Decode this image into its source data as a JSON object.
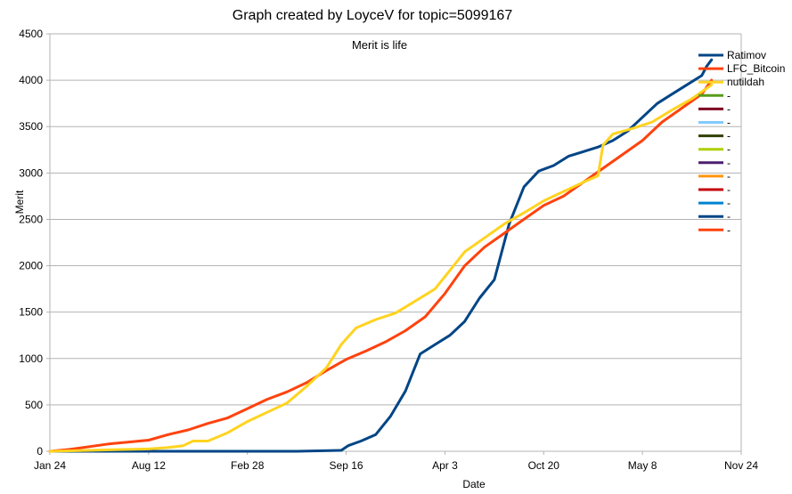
{
  "chart_data": {
    "type": "line",
    "title": "Graph created by LoyceV for topic=5099167",
    "subtitle": "Merit is life",
    "xlabel": "Date",
    "ylabel": "Merit",
    "ylim": [
      0,
      4500
    ],
    "yticks": [
      0,
      500,
      1000,
      1500,
      2000,
      2500,
      3000,
      3500,
      4000,
      4500
    ],
    "x_tick_labels": [
      "Jan 24",
      "Aug 12",
      "Feb 28",
      "Sep 16",
      "Apr 3",
      "Oct 20",
      "May 8",
      "Nov 24"
    ],
    "grid": "horizontal",
    "legend_position": "right",
    "series": [
      {
        "name": "Ratimov",
        "color": "#004586",
        "x": [
          0,
          0.5,
          1,
          1.5,
          2,
          2.5,
          2.95,
          3.02,
          3.15,
          3.3,
          3.45,
          3.6,
          3.75,
          3.9,
          4.05,
          4.2,
          4.35,
          4.5,
          4.65,
          4.8,
          4.95,
          5.1,
          5.25,
          5.4,
          5.55,
          5.7,
          5.85,
          6.0,
          6.15,
          6.3,
          6.45,
          6.6,
          6.65,
          6.7
        ],
        "y": [
          0,
          0,
          0,
          0,
          0,
          0,
          10,
          60,
          110,
          180,
          380,
          650,
          1050,
          1150,
          1250,
          1400,
          1650,
          1850,
          2450,
          2850,
          3020,
          3080,
          3180,
          3230,
          3280,
          3350,
          3450,
          3600,
          3750,
          3850,
          3950,
          4050,
          4150,
          4220
        ]
      },
      {
        "name": "LFC_Bitcoin",
        "color": "#ff420e",
        "x": [
          0,
          0.2,
          0.4,
          0.6,
          0.8,
          1.0,
          1.2,
          1.4,
          1.6,
          1.8,
          2.0,
          2.2,
          2.4,
          2.6,
          2.8,
          3.0,
          3.2,
          3.4,
          3.6,
          3.8,
          4.0,
          4.2,
          4.4,
          4.6,
          4.8,
          5.0,
          5.2,
          5.4,
          5.6,
          5.8,
          6.0,
          6.2,
          6.4,
          6.6,
          6.7
        ],
        "y": [
          0,
          20,
          50,
          80,
          100,
          120,
          180,
          230,
          300,
          360,
          460,
          560,
          640,
          740,
          870,
          990,
          1080,
          1180,
          1300,
          1450,
          1700,
          2000,
          2200,
          2350,
          2500,
          2650,
          2750,
          2900,
          3050,
          3200,
          3350,
          3550,
          3700,
          3850,
          4000
        ]
      },
      {
        "name": "nutildah",
        "color": "#ffd320",
        "x": [
          0,
          0.2,
          0.4,
          0.6,
          0.8,
          1.0,
          1.2,
          1.35,
          1.45,
          1.6,
          1.8,
          2.0,
          2.2,
          2.4,
          2.6,
          2.8,
          2.95,
          3.1,
          3.3,
          3.5,
          3.7,
          3.9,
          4.05,
          4.2,
          4.4,
          4.6,
          4.8,
          5.0,
          5.2,
          5.4,
          5.55,
          5.6,
          5.7,
          5.9,
          6.1,
          6.3,
          6.5,
          6.7
        ],
        "y": [
          0,
          5,
          10,
          15,
          20,
          25,
          40,
          60,
          110,
          110,
          200,
          320,
          420,
          520,
          700,
          900,
          1150,
          1330,
          1420,
          1490,
          1620,
          1750,
          1950,
          2150,
          2300,
          2450,
          2570,
          2700,
          2800,
          2900,
          2970,
          3300,
          3420,
          3480,
          3550,
          3680,
          3800,
          3950
        ]
      },
      {
        "name": "-",
        "color": "#579d1c",
        "x": [],
        "y": []
      },
      {
        "name": "-",
        "color": "#7e0021",
        "x": [],
        "y": []
      },
      {
        "name": "-",
        "color": "#83caff",
        "x": [],
        "y": []
      },
      {
        "name": "-",
        "color": "#314004",
        "x": [],
        "y": []
      },
      {
        "name": "-",
        "color": "#aecf00",
        "x": [],
        "y": []
      },
      {
        "name": "-",
        "color": "#4b1f6f",
        "x": [],
        "y": []
      },
      {
        "name": "-",
        "color": "#ff950e",
        "x": [],
        "y": []
      },
      {
        "name": "-",
        "color": "#c5000b",
        "x": [],
        "y": []
      },
      {
        "name": "-",
        "color": "#0084d1",
        "x": [],
        "y": []
      },
      {
        "name": "-",
        "color": "#004586",
        "x": [],
        "y": []
      },
      {
        "name": "-",
        "color": "#ff420e",
        "x": [],
        "y": []
      }
    ]
  }
}
